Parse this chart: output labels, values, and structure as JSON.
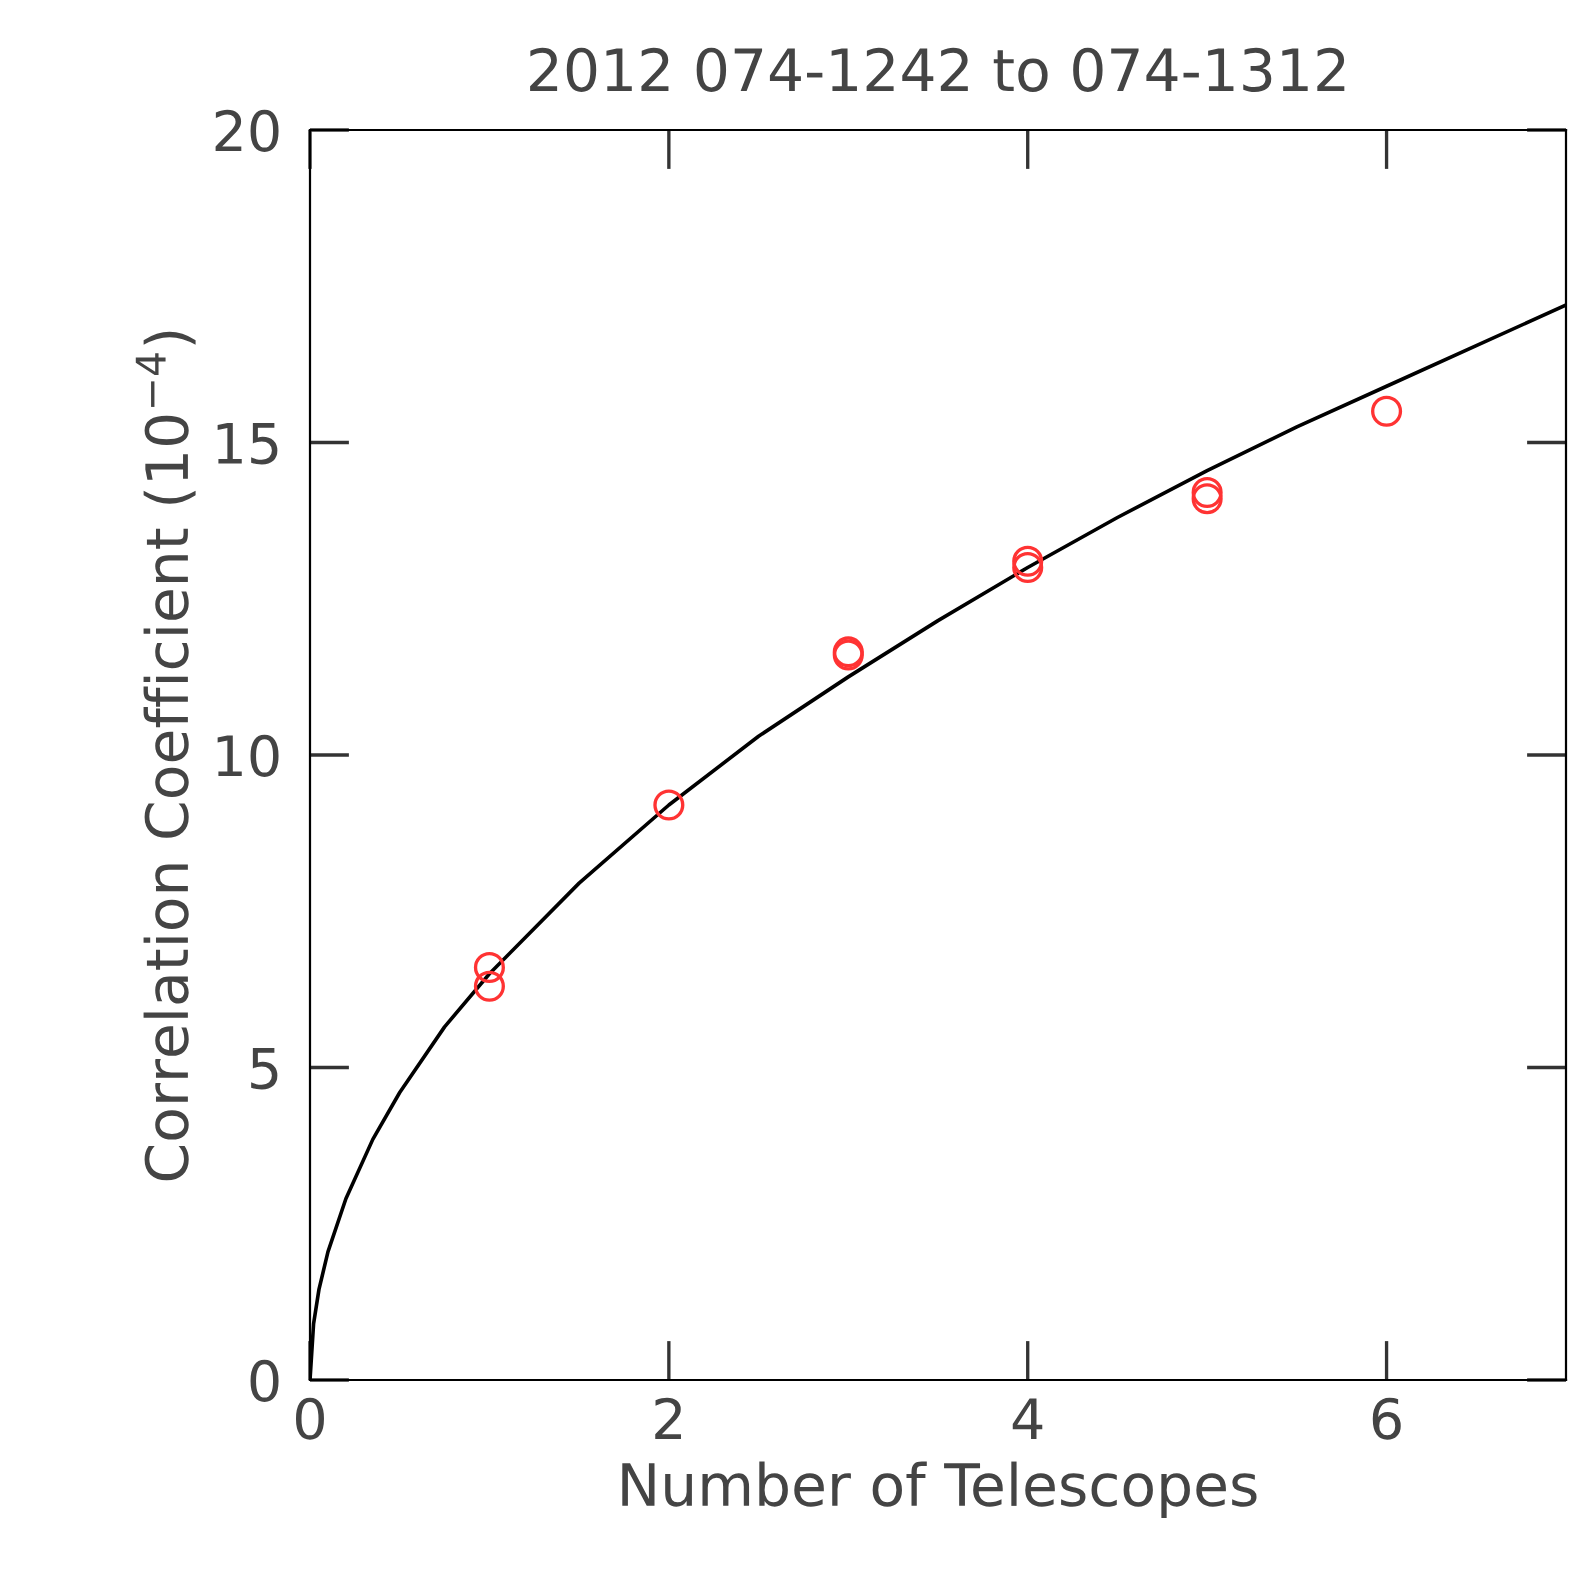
{
  "chart_data": {
    "type": "scatter",
    "title": "2012 074-1242 to 074-1312",
    "xlabel": "Number of Telescopes",
    "ylabel": "Correlation Coefficient (10$^{−4}$)",
    "series": [
      {
        "color": "#ff3333",
        "marker": "circle",
        "x": [
          1,
          1,
          2,
          3,
          3,
          4,
          4,
          5,
          5,
          6
        ],
        "values": [
          6.6,
          6.3,
          9.2,
          11.65,
          11.6,
          13.1,
          13.0,
          14.2,
          14.1,
          15.5
        ]
      },
      {
        "type": "line",
        "color": "#000000",
        "marker": "none",
        "line_style": "solid",
        "x": [
          0,
          0.02,
          0.05,
          0.1,
          0.2,
          0.35,
          0.5,
          0.75,
          1,
          1.5,
          2,
          2.5,
          3,
          3.5,
          4,
          4.5,
          5,
          5.5,
          6,
          6.5,
          7
        ],
        "values": [
          0,
          0.9,
          1.45,
          2.05,
          2.9,
          3.85,
          4.6,
          5.65,
          6.5,
          7.95,
          9.2,
          10.3,
          11.25,
          12.15,
          13.0,
          13.8,
          14.55,
          15.25,
          15.9,
          16.55,
          17.2
        ]
      }
    ],
    "xlim": [
      0,
      7
    ],
    "ylim": [
      0,
      20
    ],
    "xticks": [
      0,
      2,
      4,
      6
    ],
    "yticks": [
      0,
      5,
      10,
      15,
      20
    ],
    "grid": false,
    "legend": false
  }
}
